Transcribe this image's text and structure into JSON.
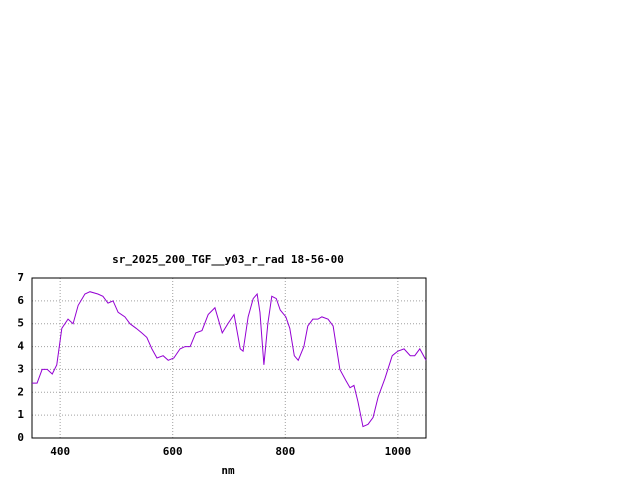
{
  "chart_data": {
    "type": "line",
    "title": "sr_2025_200_TGF__y03_r_rad 18-56-00",
    "x_label": "nm",
    "x": [
      350,
      359,
      368,
      377,
      386,
      394,
      403,
      414,
      423,
      432,
      444,
      453,
      467,
      476,
      485,
      494,
      503,
      515,
      524,
      535,
      545,
      554,
      563,
      572,
      583,
      592,
      602,
      613,
      622,
      631,
      641,
      652,
      663,
      675,
      688,
      698,
      709,
      720,
      725,
      734,
      743,
      750,
      755,
      762,
      769,
      776,
      784,
      791,
      801,
      808,
      816,
      823,
      833,
      840,
      849,
      858,
      865,
      876,
      885,
      897,
      908,
      915,
      922,
      929,
      938,
      947,
      956,
      965,
      977,
      990,
      1000,
      1011,
      1022,
      1030,
      1039,
      1050
    ],
    "series": [
      {
        "color": "#9400d3",
        "values": [
          2.4,
          2.4,
          3.0,
          3.0,
          2.8,
          3.2,
          4.8,
          5.2,
          5.0,
          5.8,
          6.3,
          6.4,
          6.3,
          6.2,
          5.9,
          6.0,
          5.5,
          5.3,
          5.0,
          4.8,
          4.6,
          4.4,
          3.9,
          3.5,
          3.6,
          3.4,
          3.5,
          3.9,
          4.0,
          4.0,
          4.6,
          4.7,
          5.4,
          5.7,
          4.6,
          5.0,
          5.4,
          3.9,
          3.8,
          5.3,
          6.1,
          6.3,
          5.5,
          3.2,
          5.0,
          6.2,
          6.1,
          5.6,
          5.3,
          4.8,
          3.6,
          3.4,
          4.0,
          4.9,
          5.2,
          5.2,
          5.3,
          5.2,
          4.9,
          3.0,
          2.5,
          2.2,
          2.3,
          1.6,
          0.5,
          0.6,
          0.9,
          1.8,
          2.6,
          3.6,
          3.8,
          3.9,
          3.6,
          3.6,
          3.9,
          3.4
        ]
      }
    ],
    "xlim": [
      350,
      1050
    ],
    "xticks": [
      400,
      600,
      800,
      1000
    ],
    "ylim": [
      0,
      7
    ],
    "yticks": [
      0,
      1,
      2,
      3,
      4,
      5,
      6,
      7
    ],
    "grid": true
  }
}
